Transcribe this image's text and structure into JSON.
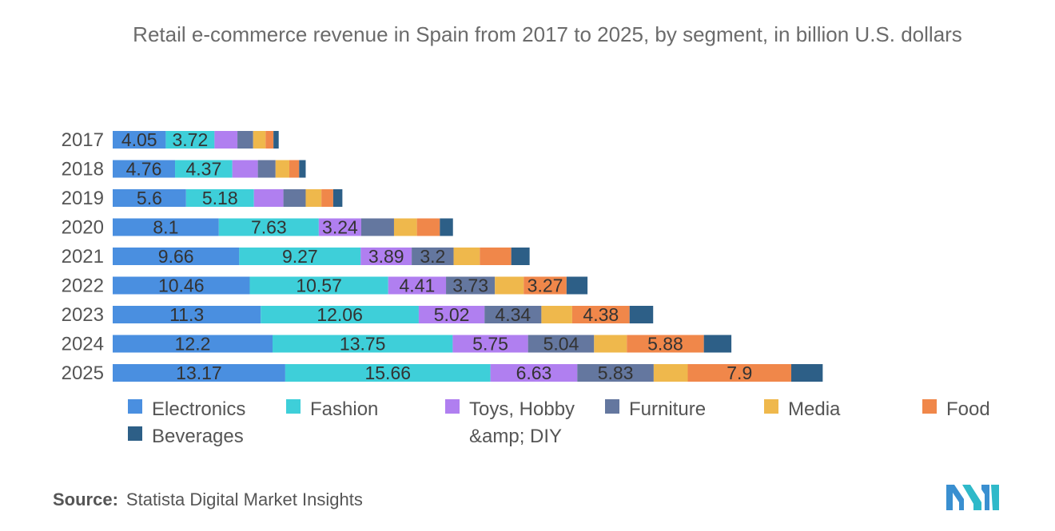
{
  "chart_data": {
    "type": "bar",
    "orientation": "horizontal",
    "stacked": true,
    "title": "Retail e-commerce revenue in Spain from 2017 to 2025, by segment, in billion U.S. dollars",
    "categories": [
      "2017",
      "2018",
      "2019",
      "2020",
      "2021",
      "2022",
      "2023",
      "2024",
      "2025"
    ],
    "xlim": [
      0,
      61
    ],
    "grid": false,
    "legend_position": "bottom",
    "series": [
      {
        "name": "Electronics",
        "color": "#4a8fe0",
        "values": [
          4.05,
          4.76,
          5.6,
          8.1,
          9.66,
          10.46,
          11.3,
          12.2,
          13.17
        ],
        "labels": [
          "4.05",
          "4.76",
          "5.6",
          "8.1",
          "9.66",
          "10.46",
          "11.3",
          "12.2",
          "13.17"
        ]
      },
      {
        "name": "Fashion",
        "color": "#3ecfd9",
        "values": [
          3.72,
          4.37,
          5.18,
          7.63,
          9.27,
          10.57,
          12.06,
          13.75,
          15.66
        ],
        "labels": [
          "3.72",
          "4.37",
          "5.18",
          "7.63",
          "9.27",
          "10.57",
          "12.06",
          "13.75",
          "15.66"
        ]
      },
      {
        "name": "Toys, Hobby &amp; DIY",
        "color": "#b07ff0",
        "values": [
          1.75,
          1.95,
          2.25,
          3.24,
          3.89,
          4.41,
          5.02,
          5.75,
          6.63
        ],
        "labels": [
          null,
          null,
          null,
          "3.24",
          "3.89",
          "4.41",
          "5.02",
          "5.75",
          "6.63"
        ]
      },
      {
        "name": "Furniture",
        "color": "#64779f",
        "values": [
          1.2,
          1.35,
          1.7,
          2.5,
          3.2,
          3.73,
          4.34,
          5.04,
          5.83
        ],
        "labels": [
          null,
          null,
          null,
          null,
          "3.2",
          "3.73",
          "4.34",
          "5.04",
          "5.83"
        ]
      },
      {
        "name": "Media",
        "color": "#efb84c",
        "values": [
          0.95,
          1.05,
          1.2,
          1.75,
          2.0,
          2.2,
          2.35,
          2.5,
          2.6
        ],
        "labels": [
          null,
          null,
          null,
          null,
          null,
          null,
          null,
          null,
          null
        ]
      },
      {
        "name": "Food",
        "color": "#f0874a",
        "values": [
          0.6,
          0.75,
          0.9,
          1.75,
          2.4,
          3.27,
          4.38,
          5.88,
          7.9
        ],
        "labels": [
          null,
          null,
          null,
          null,
          null,
          "3.27",
          "4.38",
          "5.88",
          "7.9"
        ]
      },
      {
        "name": "Beverages",
        "color": "#2d5f87",
        "values": [
          0.4,
          0.5,
          0.7,
          1.0,
          1.4,
          1.6,
          1.8,
          2.1,
          2.4
        ],
        "labels": [
          null,
          null,
          null,
          null,
          null,
          null,
          null,
          null,
          null
        ]
      }
    ]
  },
  "source": {
    "label": "Source:",
    "text": "Statista Digital Market Insights"
  },
  "logo": {
    "icon": "mordor-intelligence-logo-icon",
    "color": "#3a8fd0"
  }
}
